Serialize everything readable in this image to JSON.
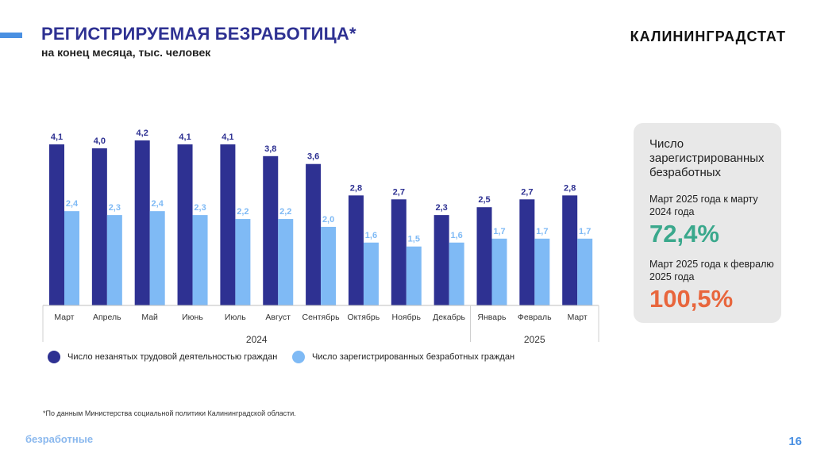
{
  "header": {
    "title": "РЕГИСТРИРУЕМАЯ БЕЗРАБОТИЦА*",
    "subtitle": "на конец месяца, тыс. человек",
    "brand": "КАЛИНИНГРАДСТАТ"
  },
  "chart_data": {
    "type": "bar",
    "categories": [
      "Март",
      "Апрель",
      "Май",
      "Июнь",
      "Июль",
      "Август",
      "Сентябрь",
      "Октябрь",
      "Ноябрь",
      "Декабрь",
      "Январь",
      "Февраль",
      "Март"
    ],
    "year_groups": [
      {
        "label": "2024",
        "start": 0,
        "end": 9
      },
      {
        "label": "2025",
        "start": 10,
        "end": 12
      }
    ],
    "series": [
      {
        "name": "Число незанятых трудовой деятельностью граждан",
        "color": "#2e3192",
        "values": [
          4.1,
          4.0,
          4.2,
          4.1,
          4.1,
          3.8,
          3.6,
          2.8,
          2.7,
          2.3,
          2.5,
          2.7,
          2.8
        ],
        "labels": [
          "4,1",
          "4,0",
          "4,2",
          "4,1",
          "4,1",
          "3,8",
          "3,6",
          "2,8",
          "2,7",
          "2,3",
          "2,5",
          "2,7",
          "2,8"
        ]
      },
      {
        "name": "Число зарегистрированных безработных граждан",
        "color": "#7fbaf5",
        "values": [
          2.4,
          2.3,
          2.4,
          2.3,
          2.2,
          2.2,
          2.0,
          1.6,
          1.5,
          1.6,
          1.7,
          1.7,
          1.7
        ],
        "labels": [
          "2,4",
          "2,3",
          "2,4",
          "2,3",
          "2,2",
          "2,2",
          "2,0",
          "1,6",
          "1,5",
          "1,6",
          "1,7",
          "1,7",
          "1,7"
        ]
      }
    ],
    "ylim": [
      0,
      4.5
    ]
  },
  "info": {
    "heading": "Число зарегистрированных безработных",
    "label1": "Март 2025  года к марту 2024 года",
    "value1": "72,4%",
    "value1_color": "#3aa88c",
    "label2": "Март 2025 года к февралю 2025 года",
    "value2": "100,5%",
    "value2_color": "#e8663d"
  },
  "footer": {
    "footnote": "*По данным Министерства социальной политики Калининградской области.",
    "section": "безработные",
    "page": "16"
  }
}
